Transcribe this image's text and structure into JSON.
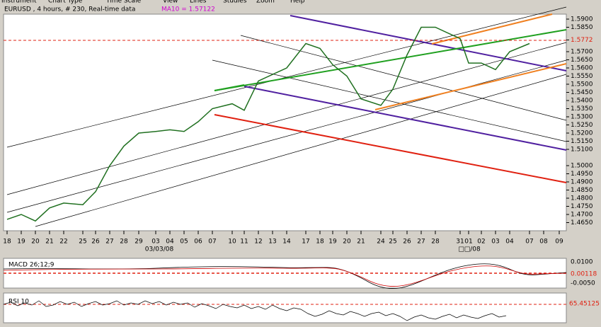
{
  "menu": [
    "Instrument",
    "Chart Type",
    "Time Scale",
    "View",
    "Lines",
    "Studies",
    "Zoom",
    "Help"
  ],
  "header": {
    "info": "EURUSD , 4 hours, # 230, Real-time data",
    "ma": "MA10 = 1.57122"
  },
  "price_axis": [
    {
      "value": 1.59,
      "label": "1.5900"
    },
    {
      "value": 1.585,
      "label": "1.5850"
    },
    {
      "value": 1.5772,
      "label": "1.5772"
    },
    {
      "value": 1.57,
      "label": "1.5700"
    },
    {
      "value": 1.565,
      "label": "1.5650"
    },
    {
      "value": 1.56,
      "label": "1.5600"
    },
    {
      "value": 1.555,
      "label": "1.5550"
    },
    {
      "value": 1.55,
      "label": "1.5500"
    },
    {
      "value": 1.545,
      "label": "1.5450"
    },
    {
      "value": 1.54,
      "label": "1.5400"
    },
    {
      "value": 1.535,
      "label": "1.5350"
    },
    {
      "value": 1.53,
      "label": "1.5300"
    },
    {
      "value": 1.525,
      "label": "1.5250"
    },
    {
      "value": 1.52,
      "label": "1.5200"
    },
    {
      "value": 1.515,
      "label": "1.5150"
    },
    {
      "value": 1.51,
      "label": "1.5100"
    },
    {
      "value": 1.5,
      "label": "1.5000"
    },
    {
      "value": 1.495,
      "label": "1.4950"
    },
    {
      "value": 1.49,
      "label": "1.4900"
    },
    {
      "value": 1.485,
      "label": "1.4850"
    },
    {
      "value": 1.48,
      "label": "1.4800"
    },
    {
      "value": 1.475,
      "label": "1.4750"
    },
    {
      "value": 1.47,
      "label": "1.4700"
    },
    {
      "value": 1.465,
      "label": "1.4650"
    }
  ],
  "dates": [
    "18",
    "19",
    "20",
    "21",
    "22",
    "25",
    "26",
    "27",
    "28",
    "29",
    "03",
    "04",
    "05",
    "06",
    "07",
    "10",
    "11",
    "12",
    "13",
    "14",
    "17",
    "18",
    "19",
    "20",
    "21",
    "24",
    "25",
    "26",
    "27",
    "28",
    "31",
    "01",
    "02",
    "03",
    "04",
    "07",
    "08",
    "09"
  ],
  "close_estimates": [
    1.467,
    1.47,
    1.466,
    1.474,
    1.477,
    1.476,
    1.484,
    1.5,
    1.512,
    1.52,
    1.521,
    1.522,
    1.521,
    1.527,
    1.535,
    1.538,
    1.534,
    1.552,
    1.556,
    1.56,
    1.575,
    1.572,
    1.562,
    1.555,
    1.541,
    1.537,
    1.547,
    1.568,
    1.585,
    1.585,
    1.578,
    1.563,
    1.563,
    1.559,
    1.57,
    1.575,
    null,
    null
  ],
  "months": [
    "03/03/08",
    "□□/08"
  ],
  "macd": {
    "label": "MACD 26;12;9",
    "axis": [
      {
        "value": 0.01,
        "label": "0.0100"
      },
      {
        "value": 0.00118,
        "label": "0.00118"
      },
      {
        "value": -0.005,
        "label": "-0.0050"
      }
    ]
  },
  "rsi": {
    "label": "RSI 10",
    "axis": [
      {
        "value": 65.45125,
        "label": "65.45125"
      }
    ]
  }
}
